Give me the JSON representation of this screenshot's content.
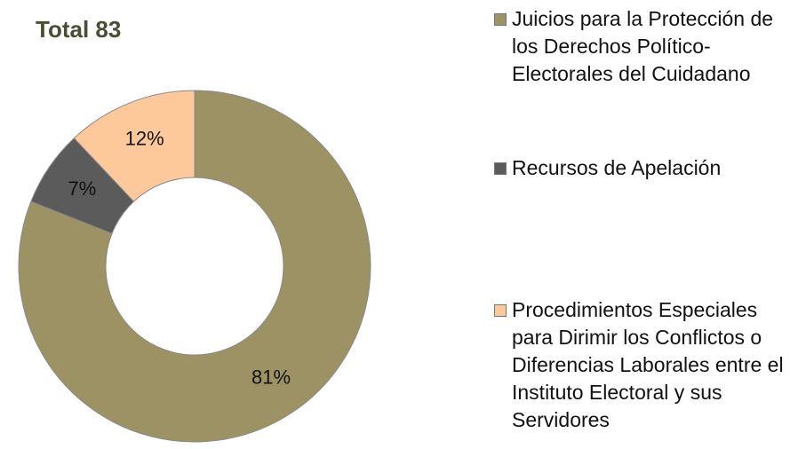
{
  "chart_data": {
    "type": "donut",
    "title": "Total 83",
    "categories": [
      "Juicios para la Protección de los Derechos Político-Electorales del Cuidadano",
      "Recursos de Apelación",
      "Procedimientos Especiales para Dirimir los Conflictos o Diferencias Laborales entre el Instituto Electoral y sus Servidores"
    ],
    "values": [
      81,
      7,
      12
    ],
    "value_labels": [
      "81%",
      "7%",
      "12%"
    ],
    "colors": [
      "#9c9263",
      "#5b5b5b",
      "#fdc99b"
    ],
    "legend": "right"
  }
}
